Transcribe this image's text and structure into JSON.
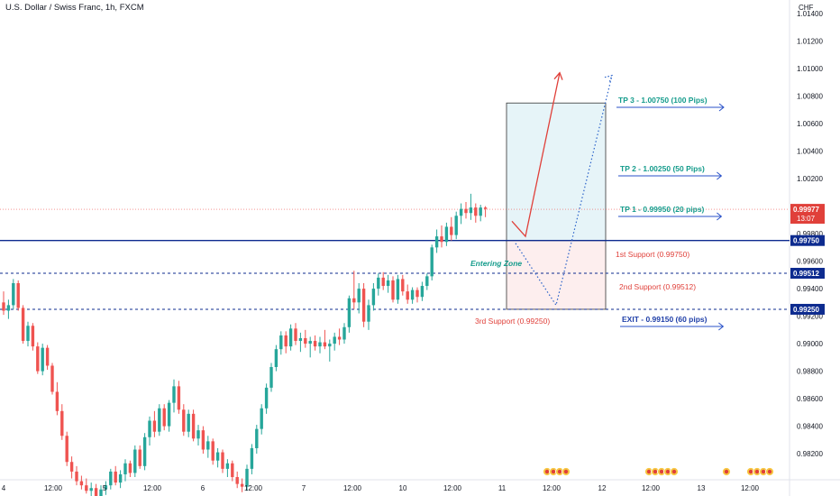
{
  "header": {
    "symbol_title": "U.S. Dollar / Swiss Franc, 1h, FXCM"
  },
  "price_axis": {
    "currency": "CHF",
    "ticks": [
      "1.01400",
      "1.01200",
      "1.01000",
      "1.00800",
      "1.00600",
      "1.00400",
      "1.00200",
      "0.99800",
      "0.99600",
      "0.99400",
      "0.99200",
      "0.99000",
      "0.98800",
      "0.98600",
      "0.98400",
      "0.98200"
    ],
    "current_price": "0.99977",
    "countdown": "13:07",
    "labels": {
      "support1": "0.99750",
      "support2": "0.99512",
      "support3": "0.99250"
    }
  },
  "time_axis": {
    "ticks": [
      "4",
      "12:00",
      "5",
      "12:00",
      "6",
      "12:00",
      "7",
      "12:00",
      "10",
      "12:00",
      "11",
      "12:00",
      "12",
      "12:00",
      "13",
      "12:00"
    ]
  },
  "annotations": {
    "tp3": "TP 3 - 1.00750 (100 Pips)",
    "tp2": "TP 2 - 1.00250 (50 Pips)",
    "tp1": "TP 1 - 0.99950 (20 pips)",
    "support1": "1st Support (0.99750)",
    "support2": "2nd Support (0.99512)",
    "support3": "3rd Support (0.99250)",
    "entry": "Entering Zone",
    "exit": "EXIT - 0.99150 (60 pips)"
  },
  "colors": {
    "up": "#26a69a",
    "down": "#ef5350",
    "level_line": "#0d2b8f",
    "profit_zone": "#e6f4f8",
    "loss_zone": "#fdeeee",
    "tp_text": "#159c8c",
    "support_text": "#e0403a",
    "exit_text": "#1f3fa8",
    "price_badge": "#e0403a"
  },
  "chart_data": {
    "type": "candlestick",
    "symbol": "USD/CHF",
    "timeframe": "1h",
    "x_labels": [
      "4",
      "12:00",
      "5",
      "12:00",
      "6",
      "12:00",
      "7",
      "12:00",
      "10",
      "12:00",
      "11",
      "12:00",
      "12",
      "12:00",
      "13",
      "12:00"
    ],
    "ylim": [
      0.9808,
      1.0148
    ],
    "levels": {
      "tp3": 1.0075,
      "tp2": 1.0025,
      "tp1": 0.9995,
      "support1": 0.9975,
      "support2": 0.99512,
      "support3": 0.9925,
      "exit": 0.9915,
      "current": 0.99977
    },
    "candles": [
      [
        0.993,
        0.9938,
        0.9921,
        0.9924
      ],
      [
        0.9924,
        0.9932,
        0.9918,
        0.9928
      ],
      [
        0.9928,
        0.9947,
        0.9925,
        0.9944
      ],
      [
        0.9944,
        0.9946,
        0.9924,
        0.9926
      ],
      [
        0.9926,
        0.9928,
        0.99,
        0.9902
      ],
      [
        0.9902,
        0.9916,
        0.9898,
        0.9913
      ],
      [
        0.9913,
        0.9915,
        0.9895,
        0.9898
      ],
      [
        0.9898,
        0.9901,
        0.9878,
        0.988
      ],
      [
        0.988,
        0.99,
        0.9877,
        0.9897
      ],
      [
        0.9897,
        0.9899,
        0.9881,
        0.9884
      ],
      [
        0.9884,
        0.9886,
        0.9863,
        0.9865
      ],
      [
        0.9865,
        0.9872,
        0.9848,
        0.9851
      ],
      [
        0.9851,
        0.9856,
        0.983,
        0.9833
      ],
      [
        0.9833,
        0.9836,
        0.9811,
        0.9814
      ],
      [
        0.9814,
        0.9818,
        0.9802,
        0.9807
      ],
      [
        0.9807,
        0.9811,
        0.9797,
        0.98
      ],
      [
        0.98,
        0.9804,
        0.9794,
        0.9797
      ],
      [
        0.9797,
        0.9802,
        0.9791,
        0.9793
      ],
      [
        0.9793,
        0.9799,
        0.9788,
        0.9795
      ],
      [
        0.9795,
        0.9798,
        0.9786,
        0.9789
      ],
      [
        0.9789,
        0.9797,
        0.9785,
        0.9794
      ],
      [
        0.9794,
        0.98,
        0.979,
        0.9797
      ],
      [
        0.9797,
        0.9809,
        0.9794,
        0.9807
      ],
      [
        0.9807,
        0.9811,
        0.9797,
        0.9799
      ],
      [
        0.9799,
        0.9808,
        0.9795,
        0.9805
      ],
      [
        0.9805,
        0.9816,
        0.98,
        0.9813
      ],
      [
        0.9813,
        0.9815,
        0.9803,
        0.9806
      ],
      [
        0.9806,
        0.9826,
        0.9803,
        0.9823
      ],
      [
        0.9823,
        0.9826,
        0.9809,
        0.9811
      ],
      [
        0.9811,
        0.9835,
        0.9808,
        0.9832
      ],
      [
        0.9832,
        0.9847,
        0.9826,
        0.9844
      ],
      [
        0.9844,
        0.9851,
        0.9832,
        0.9836
      ],
      [
        0.9836,
        0.9856,
        0.9833,
        0.9853
      ],
      [
        0.9853,
        0.9856,
        0.9837,
        0.984
      ],
      [
        0.984,
        0.9859,
        0.9836,
        0.9857
      ],
      [
        0.9857,
        0.9874,
        0.985,
        0.9869
      ],
      [
        0.9869,
        0.9873,
        0.9849,
        0.9852
      ],
      [
        0.9852,
        0.9856,
        0.9833,
        0.9836
      ],
      [
        0.9836,
        0.9852,
        0.9832,
        0.9849
      ],
      [
        0.9849,
        0.9852,
        0.9829,
        0.9831
      ],
      [
        0.9831,
        0.9841,
        0.9826,
        0.9837
      ],
      [
        0.9837,
        0.984,
        0.982,
        0.9823
      ],
      [
        0.9823,
        0.9833,
        0.9817,
        0.9829
      ],
      [
        0.9829,
        0.9831,
        0.9812,
        0.9815
      ],
      [
        0.9815,
        0.9824,
        0.981,
        0.9821
      ],
      [
        0.9821,
        0.9823,
        0.9806,
        0.9809
      ],
      [
        0.9809,
        0.9816,
        0.9803,
        0.9813
      ],
      [
        0.9813,
        0.9815,
        0.98,
        0.9803
      ],
      [
        0.9803,
        0.9807,
        0.9795,
        0.9798
      ],
      [
        0.9798,
        0.9802,
        0.9792,
        0.9796
      ],
      [
        0.9796,
        0.9812,
        0.9793,
        0.9809
      ],
      [
        0.9809,
        0.9827,
        0.9805,
        0.9824
      ],
      [
        0.9824,
        0.9841,
        0.982,
        0.9838
      ],
      [
        0.9838,
        0.9856,
        0.9834,
        0.9853
      ],
      [
        0.9853,
        0.9871,
        0.9849,
        0.9868
      ],
      [
        0.9868,
        0.9886,
        0.9865,
        0.9883
      ],
      [
        0.9883,
        0.9899,
        0.988,
        0.9896
      ],
      [
        0.9896,
        0.9909,
        0.9892,
        0.9906
      ],
      [
        0.9906,
        0.9909,
        0.9893,
        0.9898
      ],
      [
        0.9898,
        0.9914,
        0.9895,
        0.9911
      ],
      [
        0.9911,
        0.9915,
        0.9899,
        0.9902
      ],
      [
        0.9902,
        0.9908,
        0.9894,
        0.9904
      ],
      [
        0.9904,
        0.991,
        0.9897,
        0.99
      ],
      [
        0.99,
        0.9905,
        0.989,
        0.9902
      ],
      [
        0.9902,
        0.9906,
        0.9895,
        0.9898
      ],
      [
        0.9898,
        0.9905,
        0.9893,
        0.9901
      ],
      [
        0.9901,
        0.991,
        0.9896,
        0.9898
      ],
      [
        0.9898,
        0.9903,
        0.9887,
        0.99
      ],
      [
        0.99,
        0.9908,
        0.9895,
        0.9905
      ],
      [
        0.9905,
        0.9911,
        0.9899,
        0.9903
      ],
      [
        0.9903,
        0.9915,
        0.99,
        0.9912
      ],
      [
        0.9912,
        0.9935,
        0.9908,
        0.9933
      ],
      [
        0.9933,
        0.9953,
        0.9925,
        0.993
      ],
      [
        0.993,
        0.9944,
        0.9922,
        0.994
      ],
      [
        0.994,
        0.9944,
        0.9912,
        0.9916
      ],
      [
        0.9916,
        0.9932,
        0.991,
        0.9928
      ],
      [
        0.9928,
        0.9944,
        0.9924,
        0.994
      ],
      [
        0.994,
        0.9951,
        0.9935,
        0.9948
      ],
      [
        0.9948,
        0.9952,
        0.9939,
        0.9942
      ],
      [
        0.9942,
        0.995,
        0.9937,
        0.9946
      ],
      [
        0.9946,
        0.9949,
        0.993,
        0.9932
      ],
      [
        0.9932,
        0.995,
        0.9929,
        0.9947
      ],
      [
        0.9947,
        0.995,
        0.9935,
        0.9938
      ],
      [
        0.9938,
        0.9943,
        0.9929,
        0.9932
      ],
      [
        0.9932,
        0.9941,
        0.9929,
        0.9939
      ],
      [
        0.9939,
        0.9941,
        0.993,
        0.9934
      ],
      [
        0.9934,
        0.9945,
        0.9931,
        0.9942
      ],
      [
        0.9942,
        0.9951,
        0.9939,
        0.9949
      ],
      [
        0.9949,
        0.9972,
        0.9946,
        0.997
      ],
      [
        0.997,
        0.9983,
        0.9966,
        0.9978
      ],
      [
        0.9978,
        0.9986,
        0.997,
        0.9974
      ],
      [
        0.9974,
        0.9988,
        0.9971,
        0.9985
      ],
      [
        0.9985,
        0.9992,
        0.9975,
        0.9979
      ],
      [
        0.9979,
        0.9996,
        0.9976,
        0.9993
      ],
      [
        0.9993,
        1.0002,
        0.9987,
        0.9998
      ],
      [
        0.9998,
        1.0003,
        0.9991,
        0.9995
      ],
      [
        0.9995,
        1.0009,
        0.999,
        0.9999
      ],
      [
        0.9999,
        1.0002,
        0.9988,
        0.9993
      ],
      [
        0.9993,
        1.0001,
        0.9989,
        0.9999
      ],
      [
        0.9999,
        1.0,
        0.9992,
        0.9998
      ]
    ],
    "projections": [
      {
        "name": "tp3_path",
        "points": [
          [
            0.9989,
            0
          ],
          [
            0.9978,
            1
          ],
          [
            1.0097,
            2
          ]
        ]
      },
      {
        "name": "dip_path",
        "points": [
          [
            0.9973,
            0
          ],
          [
            0.9928,
            1
          ],
          [
            1.0095,
            2
          ]
        ]
      }
    ]
  }
}
